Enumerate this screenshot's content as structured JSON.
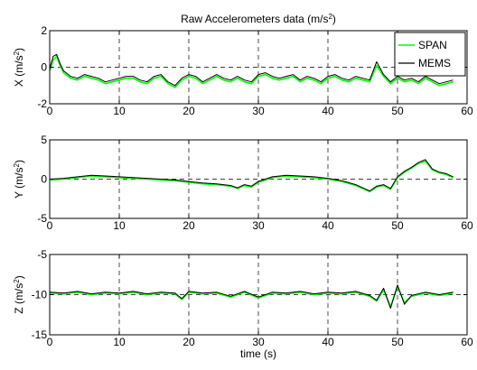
{
  "chart_data": [
    {
      "type": "line",
      "title": "Raw Accelerometers data (m/s²)",
      "ylabel": "X (m/s²)",
      "xlabel": "",
      "xlim": [
        0,
        60
      ],
      "ylim": [
        -2,
        2
      ],
      "xticks": [
        "0",
        "10",
        "20",
        "30",
        "40",
        "50",
        "60"
      ],
      "yticks": [
        "-2",
        "0",
        "2"
      ],
      "grid": "dashed",
      "legend_position": "top-right",
      "series": [
        {
          "name": "SPAN",
          "color": "#00ff00",
          "x": [
            0,
            0.5,
            1,
            1.5,
            2,
            3,
            4,
            5,
            6,
            7,
            8,
            9,
            10,
            11,
            12,
            13,
            14,
            15,
            16,
            17,
            18,
            19,
            20,
            21,
            22,
            23,
            24,
            25,
            26,
            27,
            28,
            29,
            30,
            31,
            32,
            33,
            34,
            35,
            36,
            37,
            38,
            39,
            40,
            41,
            42,
            43,
            44,
            45,
            46,
            47,
            48,
            49,
            50,
            51,
            52,
            53,
            54,
            55,
            56,
            57,
            58
          ],
          "values": [
            -0.2,
            0.4,
            0.6,
            0.1,
            -0.3,
            -0.6,
            -0.7,
            -0.5,
            -0.6,
            -0.7,
            -0.9,
            -0.8,
            -0.7,
            -0.6,
            -0.6,
            -0.8,
            -0.9,
            -0.6,
            -0.5,
            -0.9,
            -1.1,
            -0.7,
            -0.5,
            -0.6,
            -0.9,
            -0.7,
            -0.5,
            -0.7,
            -0.8,
            -0.6,
            -0.8,
            -0.9,
            -0.5,
            -0.4,
            -0.6,
            -0.7,
            -0.6,
            -0.5,
            -0.8,
            -0.6,
            -0.7,
            -0.9,
            -0.6,
            -0.5,
            -0.7,
            -0.8,
            -0.6,
            -0.7,
            -0.8,
            0.1,
            -0.5,
            -0.9,
            -0.6,
            -0.8,
            -0.7,
            -0.9,
            -0.6,
            -0.8,
            -1.0,
            -0.9,
            -0.8
          ]
        },
        {
          "name": "MEMS",
          "color": "#000000",
          "x": [
            0,
            0.5,
            1,
            1.5,
            2,
            3,
            4,
            5,
            6,
            7,
            8,
            9,
            10,
            11,
            12,
            13,
            14,
            15,
            16,
            17,
            18,
            19,
            20,
            21,
            22,
            23,
            24,
            25,
            26,
            27,
            28,
            29,
            30,
            31,
            32,
            33,
            34,
            35,
            36,
            37,
            38,
            39,
            40,
            41,
            42,
            43,
            44,
            45,
            46,
            47,
            48,
            49,
            50,
            51,
            52,
            53,
            54,
            55,
            56,
            57,
            58
          ],
          "values": [
            -0.1,
            0.6,
            0.7,
            0.2,
            -0.2,
            -0.5,
            -0.6,
            -0.4,
            -0.5,
            -0.6,
            -0.8,
            -0.7,
            -0.6,
            -0.5,
            -0.5,
            -0.7,
            -0.8,
            -0.5,
            -0.4,
            -0.8,
            -1.0,
            -0.6,
            -0.4,
            -0.5,
            -0.8,
            -0.6,
            -0.4,
            -0.6,
            -0.7,
            -0.5,
            -0.7,
            -0.8,
            -0.4,
            -0.3,
            -0.5,
            -0.6,
            -0.5,
            -0.4,
            -0.7,
            -0.5,
            -0.6,
            -0.8,
            -0.5,
            -0.4,
            -0.6,
            -0.7,
            -0.5,
            -0.6,
            -0.7,
            0.3,
            -0.4,
            -0.8,
            -0.5,
            -0.7,
            -0.6,
            -0.8,
            -0.5,
            -0.7,
            -0.9,
            -0.8,
            -0.7
          ]
        }
      ]
    },
    {
      "type": "line",
      "title": "",
      "ylabel": "Y (m/s²)",
      "xlabel": "",
      "xlim": [
        0,
        60
      ],
      "ylim": [
        -5,
        5
      ],
      "xticks": [
        "0",
        "10",
        "20",
        "30",
        "40",
        "50",
        "60"
      ],
      "yticks": [
        "-5",
        "0",
        "5"
      ],
      "grid": "dashed",
      "series": [
        {
          "name": "SPAN",
          "color": "#00ff00",
          "x": [
            0,
            2,
            4,
            6,
            8,
            10,
            12,
            14,
            16,
            18,
            20,
            22,
            24,
            26,
            27,
            28,
            29,
            30,
            32,
            34,
            36,
            38,
            40,
            42,
            44,
            45,
            46,
            47,
            48,
            49,
            50,
            51,
            52,
            53,
            54,
            55,
            56,
            57,
            58
          ],
          "values": [
            -0.1,
            0.0,
            0.2,
            0.4,
            0.3,
            0.2,
            0.1,
            0.0,
            -0.1,
            -0.2,
            -0.4,
            -0.6,
            -0.7,
            -0.9,
            -1.2,
            -0.8,
            -1.0,
            -0.4,
            0.2,
            0.4,
            0.3,
            0.2,
            0.0,
            -0.3,
            -0.8,
            -1.2,
            -1.6,
            -1.0,
            -0.8,
            -1.3,
            0.2,
            0.9,
            1.4,
            2.0,
            2.3,
            1.2,
            0.8,
            0.6,
            0.2
          ]
        },
        {
          "name": "MEMS",
          "color": "#000000",
          "x": [
            0,
            2,
            4,
            6,
            8,
            10,
            12,
            14,
            16,
            18,
            20,
            22,
            24,
            26,
            27,
            28,
            29,
            30,
            32,
            34,
            36,
            38,
            40,
            42,
            44,
            45,
            46,
            47,
            48,
            49,
            50,
            51,
            52,
            53,
            54,
            55,
            56,
            57,
            58
          ],
          "values": [
            0.0,
            0.1,
            0.3,
            0.5,
            0.4,
            0.3,
            0.2,
            0.1,
            0.0,
            -0.1,
            -0.3,
            -0.5,
            -0.6,
            -0.8,
            -1.1,
            -0.7,
            -0.9,
            -0.3,
            0.3,
            0.5,
            0.4,
            0.3,
            0.1,
            -0.2,
            -0.7,
            -1.1,
            -1.5,
            -0.9,
            -0.7,
            -1.2,
            0.3,
            1.0,
            1.5,
            2.1,
            2.5,
            1.3,
            0.9,
            0.7,
            0.3
          ]
        }
      ]
    },
    {
      "type": "line",
      "title": "",
      "ylabel": "Z (m/s²)",
      "xlabel": "time (s)",
      "xlim": [
        0,
        60
      ],
      "ylim": [
        -15,
        -5
      ],
      "xticks": [
        "0",
        "10",
        "20",
        "30",
        "40",
        "50",
        "60"
      ],
      "yticks": [
        "-15",
        "-10",
        "-5"
      ],
      "grid": "dashed",
      "series": [
        {
          "name": "SPAN",
          "color": "#00ff00",
          "x": [
            0,
            2,
            4,
            6,
            8,
            10,
            12,
            14,
            16,
            18,
            19,
            20,
            22,
            24,
            26,
            28,
            30,
            32,
            34,
            36,
            38,
            40,
            42,
            44,
            46,
            47,
            48,
            49,
            50,
            51,
            52,
            54,
            56,
            58
          ],
          "values": [
            -9.8,
            -9.9,
            -9.7,
            -10.0,
            -9.8,
            -9.9,
            -9.7,
            -10.0,
            -9.8,
            -9.9,
            -10.6,
            -9.7,
            -9.9,
            -9.8,
            -10.3,
            -9.7,
            -10.4,
            -9.8,
            -9.9,
            -9.7,
            -10.0,
            -9.8,
            -9.9,
            -9.7,
            -10.2,
            -10.8,
            -9.4,
            -11.5,
            -9.0,
            -11.0,
            -10.2,
            -9.8,
            -10.1,
            -9.8
          ]
        },
        {
          "name": "MEMS",
          "color": "#000000",
          "x": [
            0,
            2,
            4,
            6,
            8,
            10,
            12,
            14,
            16,
            18,
            19,
            20,
            22,
            24,
            26,
            28,
            30,
            32,
            34,
            36,
            38,
            40,
            42,
            44,
            46,
            47,
            48,
            49,
            50,
            51,
            52,
            54,
            56,
            58
          ],
          "values": [
            -9.7,
            -9.8,
            -9.6,
            -9.9,
            -9.7,
            -9.8,
            -9.6,
            -9.9,
            -9.7,
            -9.8,
            -10.5,
            -9.6,
            -9.8,
            -9.7,
            -10.2,
            -9.6,
            -10.3,
            -9.7,
            -9.8,
            -9.6,
            -9.9,
            -9.7,
            -9.8,
            -9.6,
            -10.1,
            -10.7,
            -9.2,
            -11.7,
            -8.8,
            -11.2,
            -10.1,
            -9.7,
            -10.0,
            -9.7
          ]
        }
      ]
    }
  ]
}
